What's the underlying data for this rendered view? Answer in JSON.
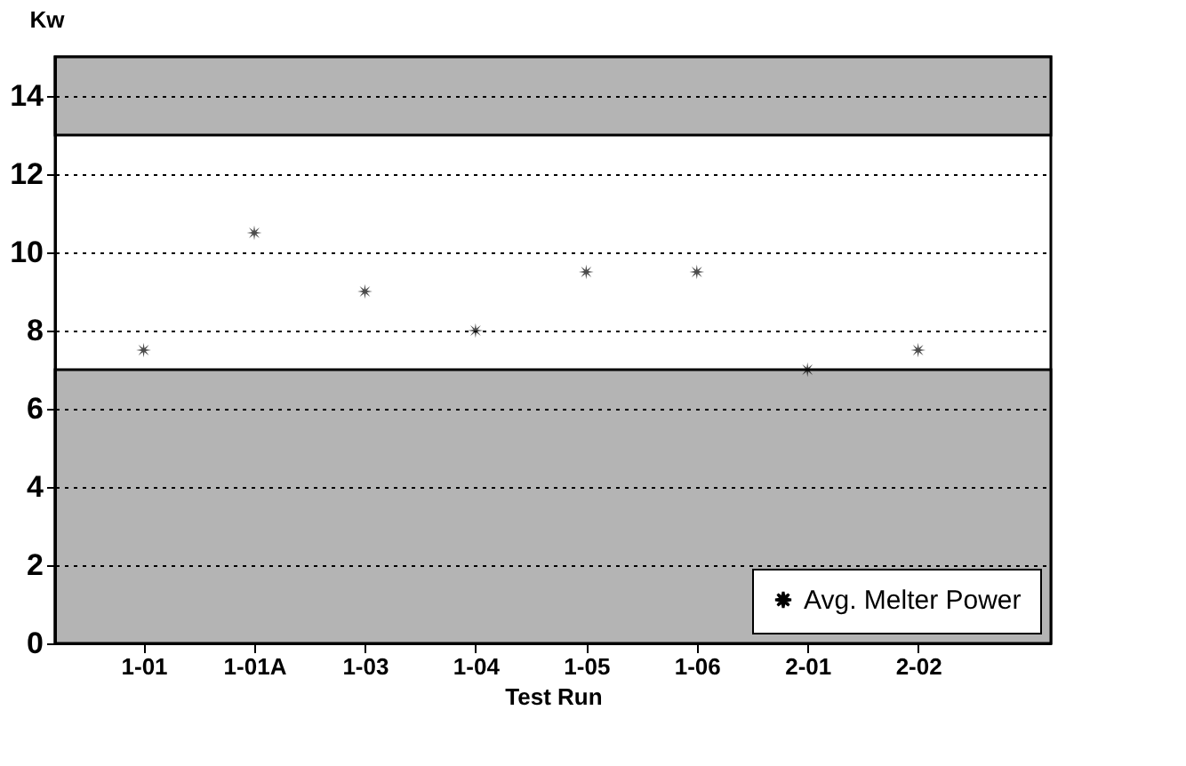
{
  "chart_data": {
    "type": "scatter",
    "xlabel": "Test Run",
    "ylabel": "Kw",
    "categories": [
      "1-01",
      "1-01A",
      "1-03",
      "1-04",
      "1-05",
      "1-06",
      "2-01",
      "2-02"
    ],
    "series": [
      {
        "name": "Avg. Melter Power",
        "color": "#000000",
        "values": [
          7.5,
          10.5,
          9,
          8,
          9.5,
          9.5,
          7,
          7.5
        ]
      }
    ],
    "ylim": [
      0,
      15
    ],
    "yticks": [
      0,
      2,
      4,
      6,
      8,
      10,
      12,
      14
    ],
    "bands": [
      {
        "axis": "y",
        "from": 0,
        "to": 7,
        "color": "#b4b4b4"
      },
      {
        "axis": "y",
        "from": 13,
        "to": 15,
        "color": "#b4b4b4"
      }
    ],
    "grid": "y",
    "legend": "bottom right",
    "marker": "star"
  }
}
